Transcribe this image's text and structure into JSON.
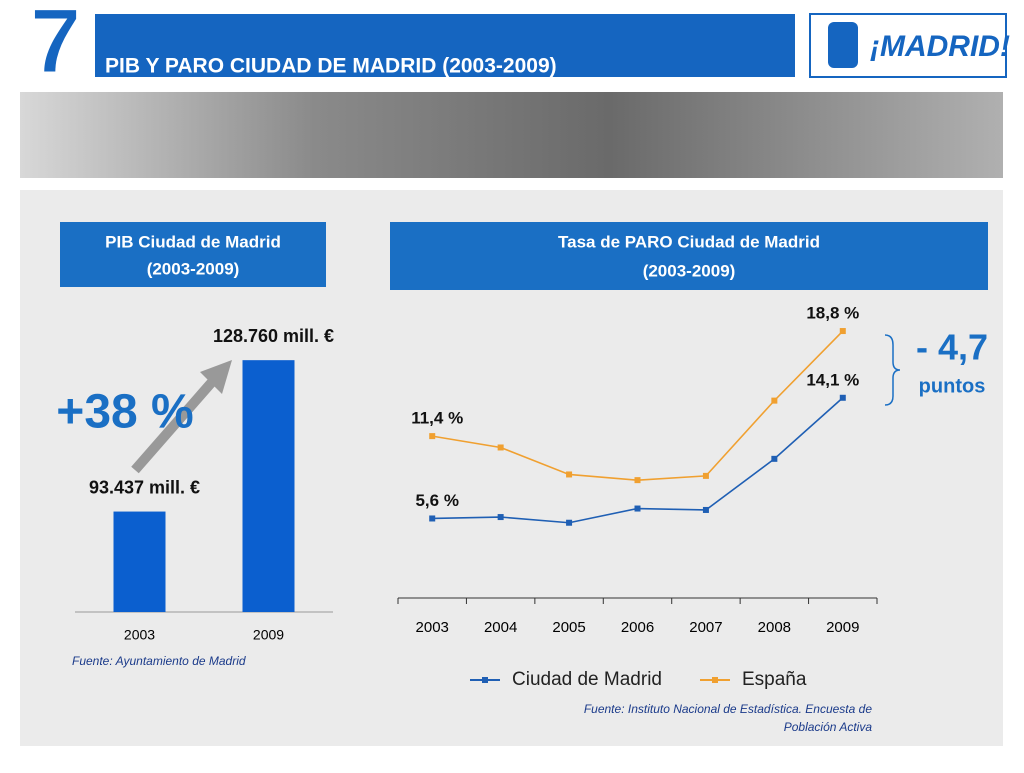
{
  "header": {
    "number": "7",
    "title": "PIB Y PARO CIUDAD DE MADRID (2003-2009)",
    "logo": "¡MADRID!"
  },
  "chart_data": [
    {
      "type": "bar",
      "title": "PIB Ciudad de Madrid",
      "subtitle": "(2003-2009)",
      "categories": [
        "2003",
        "2009"
      ],
      "values": [
        93437,
        128760
      ],
      "value_labels": [
        "93.437 mill. €",
        "128.760 mill. €"
      ],
      "color": "#0b5fcf",
      "ylim": [
        70000,
        140000
      ],
      "annotation": "+38 %",
      "source": "Fuente: Ayuntamiento de Madrid"
    },
    {
      "type": "line",
      "title": "Tasa de PARO Ciudad de Madrid",
      "subtitle": "(2003-2009)",
      "categories": [
        "2003",
        "2004",
        "2005",
        "2006",
        "2007",
        "2008",
        "2009"
      ],
      "series": [
        {
          "name": "Ciudad de Madrid",
          "color": "#1f5fb4",
          "values": [
            5.6,
            5.7,
            5.3,
            6.3,
            6.2,
            9.8,
            14.1
          ],
          "value_labels": [
            "5,6 %",
            null,
            null,
            null,
            null,
            null,
            "14,1 %"
          ]
        },
        {
          "name": "España",
          "color": "#f0a030",
          "values": [
            11.4,
            10.6,
            8.7,
            8.3,
            8.6,
            13.9,
            18.8
          ],
          "value_labels": [
            "11,4 %",
            null,
            null,
            null,
            null,
            null,
            "18,8 %"
          ]
        }
      ],
      "ylim": [
        0,
        20
      ],
      "annotation": "- 4,7",
      "annotation_unit": "puntos",
      "source": [
        "Fuente: Instituto Nacional de Estadística. Encuesta de",
        "Población Activa"
      ]
    }
  ]
}
